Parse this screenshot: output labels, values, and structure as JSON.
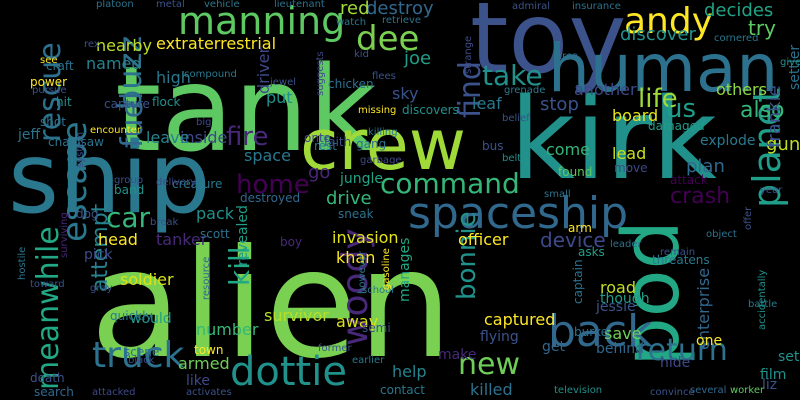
{
  "words": [
    {
      "text": "alien",
      "color": "#7ad151"
    },
    {
      "text": "tank",
      "color": "#5ec962"
    },
    {
      "text": "kirk",
      "color": "#21918c"
    },
    {
      "text": "ship",
      "color": "#2a788e"
    },
    {
      "text": "toy",
      "color": "#3b528b"
    },
    {
      "text": "crew",
      "color": "#a0da39"
    },
    {
      "text": "human",
      "color": "#2c728e"
    },
    {
      "text": "pod",
      "color": "#22a884"
    },
    {
      "text": "spaceship",
      "color": "#31688e"
    },
    {
      "text": "escape",
      "color": "#2a788e"
    },
    {
      "text": "planet",
      "color": "#1f9e89"
    },
    {
      "text": "dottie",
      "color": "#21918c"
    },
    {
      "text": "manning",
      "color": "#5ec962"
    },
    {
      "text": "woody",
      "color": "#482878"
    },
    {
      "text": "buzz",
      "color": "#2c728e"
    },
    {
      "text": "truck",
      "color": "#2c728e"
    },
    {
      "text": "back",
      "color": "#31688e"
    },
    {
      "text": "rescue",
      "color": "#2c728e"
    },
    {
      "text": "meanwhile",
      "color": "#22a884"
    },
    {
      "text": "andy",
      "color": "#fde725"
    },
    {
      "text": "fuel",
      "color": "#31688e"
    },
    {
      "text": "take",
      "color": "#21918c"
    },
    {
      "text": "dee",
      "color": "#7ad151"
    },
    {
      "text": "command",
      "color": "#35b779"
    },
    {
      "text": "find",
      "color": "#3b528b"
    },
    {
      "text": "car",
      "color": "#35b779"
    },
    {
      "text": "new",
      "color": "#6ece58"
    },
    {
      "text": "return",
      "color": "#2c728e"
    },
    {
      "text": "bonnie",
      "color": "#21918c"
    },
    {
      "text": "kill",
      "color": "#22a884"
    },
    {
      "text": "fire",
      "color": "#482878"
    },
    {
      "text": "home",
      "color": "#440154"
    },
    {
      "text": "life",
      "color": "#a0da39"
    },
    {
      "text": "us",
      "color": "#1f9e89"
    },
    {
      "text": "attempt",
      "color": "#26828e"
    },
    {
      "text": "crash",
      "color": "#440154"
    },
    {
      "text": "also",
      "color": "#35b779"
    },
    {
      "text": "try",
      "color": "#5ec962"
    },
    {
      "text": "decides",
      "color": "#20a486"
    },
    {
      "text": "discover",
      "color": "#21918c"
    },
    {
      "text": "extraterrestrial",
      "color": "#fde725"
    },
    {
      "text": "named",
      "color": "#26828e"
    },
    {
      "text": "nearby",
      "color": "#bddf26"
    },
    {
      "text": "high",
      "color": "#2a788e"
    },
    {
      "text": "joe",
      "color": "#1f9e89"
    },
    {
      "text": "destroy",
      "color": "#31688e"
    },
    {
      "text": "red",
      "color": "#a0da39"
    },
    {
      "text": "stop",
      "color": "#3b528b"
    },
    {
      "text": "another",
      "color": "#3e4989"
    },
    {
      "text": "board",
      "color": "#e5e419"
    },
    {
      "text": "others",
      "color": "#8fd744"
    },
    {
      "text": "explode",
      "color": "#2a788e"
    },
    {
      "text": "plan",
      "color": "#31688e"
    },
    {
      "text": "gun",
      "color": "#bddf26"
    },
    {
      "text": "lead",
      "color": "#c8e020"
    },
    {
      "text": "come",
      "color": "#35b779"
    },
    {
      "text": "sky",
      "color": "#3b528b"
    },
    {
      "text": "leaf",
      "color": "#2a788e"
    },
    {
      "text": "put",
      "color": "#21918c"
    },
    {
      "text": "driver",
      "color": "#3e4989"
    },
    {
      "text": "space",
      "color": "#2a788e"
    },
    {
      "text": "inside",
      "color": "#3e4989"
    },
    {
      "text": "leave",
      "color": "#26828e"
    },
    {
      "text": "jeff",
      "color": "#2c728e"
    },
    {
      "text": "pack",
      "color": "#21918c"
    },
    {
      "text": "drive",
      "color": "#35b779"
    },
    {
      "text": "go",
      "color": "#482878"
    },
    {
      "text": "jungle",
      "color": "#20a486"
    },
    {
      "text": "device",
      "color": "#3e4989"
    },
    {
      "text": "officer",
      "color": "#fde725"
    },
    {
      "text": "invasion",
      "color": "#e5e419"
    },
    {
      "text": "khan",
      "color": "#fde725"
    },
    {
      "text": "survivor",
      "color": "#b5de2b"
    },
    {
      "text": "captured",
      "color": "#fde725"
    },
    {
      "text": "away",
      "color": "#d8e219"
    },
    {
      "text": "road",
      "color": "#c2df23"
    },
    {
      "text": "save",
      "color": "#6ece58"
    },
    {
      "text": "help",
      "color": "#26828e"
    },
    {
      "text": "killed",
      "color": "#2c728e"
    },
    {
      "text": "enterprise",
      "color": "#31688e"
    },
    {
      "text": "soldier",
      "color": "#d8e219"
    },
    {
      "text": "head",
      "color": "#fde725"
    },
    {
      "text": "tanker",
      "color": "#472a7a"
    },
    {
      "text": "revealed",
      "color": "#1f9e89"
    },
    {
      "text": "number",
      "color": "#35b779"
    },
    {
      "text": "armed",
      "color": "#6ece58"
    },
    {
      "text": "like",
      "color": "#3e4989"
    },
    {
      "text": "manages",
      "color": "#22a884"
    },
    {
      "text": "frankie",
      "color": "#3b528b"
    },
    {
      "text": "settler",
      "color": "#2c728e"
    },
    {
      "text": "film",
      "color": "#21918c"
    },
    {
      "text": "liz",
      "color": "#3b528b"
    },
    {
      "text": "set",
      "color": "#21918c"
    },
    {
      "text": "one",
      "color": "#fde725"
    },
    {
      "text": "behind",
      "color": "#31688e"
    },
    {
      "text": "get",
      "color": "#31688e"
    },
    {
      "text": "though",
      "color": "#1f9e89"
    },
    {
      "text": "jessie",
      "color": "#3b528b"
    },
    {
      "text": "flying",
      "color": "#3b528b"
    },
    {
      "text": "make",
      "color": "#482878"
    },
    {
      "text": "hide",
      "color": "#3e4989"
    },
    {
      "text": "captain",
      "color": "#2c728e"
    },
    {
      "text": "burke",
      "color": "#2c728e"
    },
    {
      "text": "television",
      "color": "#21918c"
    },
    {
      "text": "convince",
      "color": "#3b528b"
    },
    {
      "text": "several",
      "color": "#31688e"
    },
    {
      "text": "worker",
      "color": "#5ec962"
    },
    {
      "text": "contact",
      "color": "#2a788e"
    },
    {
      "text": "attacked",
      "color": "#3e4989"
    },
    {
      "text": "activates",
      "color": "#3b528b"
    },
    {
      "text": "search",
      "color": "#31688e"
    },
    {
      "text": "death",
      "color": "#3b528b"
    },
    {
      "text": "town",
      "color": "#fde725"
    },
    {
      "text": "scene",
      "color": "#2c728e"
    },
    {
      "text": "would",
      "color": "#1f9e89"
    },
    {
      "text": "quickly",
      "color": "#2a788e"
    },
    {
      "text": "pick",
      "color": "#3e4989"
    },
    {
      "text": "dog",
      "color": "#3b528b"
    },
    {
      "text": "scott",
      "color": "#2c728e"
    },
    {
      "text": "boy",
      "color": "#482878"
    },
    {
      "text": "resource",
      "color": "#31688e"
    },
    {
      "text": "however",
      "color": "#2c728e"
    },
    {
      "text": "school",
      "color": "#2a788e"
    },
    {
      "text": "semi",
      "color": "#3b528b"
    },
    {
      "text": "gasoline",
      "color": "#fde725"
    },
    {
      "text": "former",
      "color": "#3b528b"
    },
    {
      "text": "earlier",
      "color": "#2a788e"
    },
    {
      "text": "black",
      "color": "#3e4989"
    },
    {
      "text": "gray",
      "color": "#3b528b"
    },
    {
      "text": "hostile",
      "color": "#2a788e"
    },
    {
      "text": "toward",
      "color": "#3b528b"
    },
    {
      "text": "surviving",
      "color": "#482878"
    },
    {
      "text": "system",
      "color": "#3b528b"
    },
    {
      "text": "chainsaw",
      "color": "#2c728e"
    },
    {
      "text": "creature",
      "color": "#2a788e"
    },
    {
      "text": "band",
      "color": "#21918c"
    },
    {
      "text": "group",
      "color": "#3b528b"
    },
    {
      "text": "delivery",
      "color": "#3e4989"
    },
    {
      "text": "destroyed",
      "color": "#31688e"
    },
    {
      "text": "break",
      "color": "#3b528b"
    },
    {
      "text": "onto",
      "color": "#3e4989"
    },
    {
      "text": "rest",
      "color": "#2a788e"
    },
    {
      "text": "sneak",
      "color": "#2c728e"
    },
    {
      "text": "faith",
      "color": "#3b528b"
    },
    {
      "text": "gang",
      "color": "#2c728e"
    },
    {
      "text": "garbage",
      "color": "#3e4989"
    },
    {
      "text": "killing",
      "color": "#2a788e"
    },
    {
      "text": "chicken",
      "color": "#2c728e"
    },
    {
      "text": "missing",
      "color": "#fde725"
    },
    {
      "text": "discovers",
      "color": "#21918c"
    },
    {
      "text": "belief",
      "color": "#3b528b"
    },
    {
      "text": "grenade",
      "color": "#2a788e"
    },
    {
      "text": "damaged",
      "color": "#1f9e89"
    },
    {
      "text": "bus",
      "color": "#3b528b"
    },
    {
      "text": "belt",
      "color": "#21918c"
    },
    {
      "text": "small",
      "color": "#2c728e"
    },
    {
      "text": "found",
      "color": "#5ec962"
    },
    {
      "text": "move",
      "color": "#3e4989"
    },
    {
      "text": "attack",
      "color": "#440154"
    },
    {
      "text": "year",
      "color": "#3b528b"
    },
    {
      "text": "offer",
      "color": "#3b528b"
    },
    {
      "text": "object",
      "color": "#2c728e"
    },
    {
      "text": "threatens",
      "color": "#2a788e"
    },
    {
      "text": "remain",
      "color": "#3b528b"
    },
    {
      "text": "leader",
      "color": "#2c728e"
    },
    {
      "text": "asks",
      "color": "#1f9e89"
    },
    {
      "text": "arm",
      "color": "#fde725"
    },
    {
      "text": "battle",
      "color": "#2a788e"
    },
    {
      "text": "accidentally",
      "color": "#21918c"
    },
    {
      "text": "flees",
      "color": "#3b528b"
    },
    {
      "text": "strange",
      "color": "#3e4989"
    },
    {
      "text": "area",
      "color": "#2c728e"
    },
    {
      "text": "cornered",
      "color": "#2a788e"
    },
    {
      "text": "give",
      "color": "#21918c"
    },
    {
      "text": "admiral",
      "color": "#3b528b"
    },
    {
      "text": "insurance",
      "color": "#2c728e"
    },
    {
      "text": "watch",
      "color": "#2a788e"
    },
    {
      "text": "retrieve",
      "color": "#2c728e"
    },
    {
      "text": "kid",
      "color": "#3b528b"
    },
    {
      "text": "compound",
      "color": "#2a788e"
    },
    {
      "text": "jewel",
      "color": "#3b528b"
    },
    {
      "text": "suggests",
      "color": "#3e4989"
    },
    {
      "text": "flock",
      "color": "#21918c"
    },
    {
      "text": "capture",
      "color": "#3b528b"
    },
    {
      "text": "big",
      "color": "#3e4989"
    },
    {
      "text": "encounter",
      "color": "#fde725"
    },
    {
      "text": "shot",
      "color": "#2c728e"
    },
    {
      "text": "hit",
      "color": "#21918c"
    },
    {
      "text": "pursue",
      "color": "#3b528b"
    },
    {
      "text": "power",
      "color": "#fde725"
    },
    {
      "text": "craft",
      "color": "#2c728e"
    },
    {
      "text": "rex",
      "color": "#3b528b"
    },
    {
      "text": "see",
      "color": "#fde725"
    },
    {
      "text": "platoon",
      "color": "#2c728e"
    },
    {
      "text": "metal",
      "color": "#3b528b"
    },
    {
      "text": "vehicle",
      "color": "#2a788e"
    },
    {
      "text": "lieutenant",
      "color": "#2c728e"
    }
  ]
}
